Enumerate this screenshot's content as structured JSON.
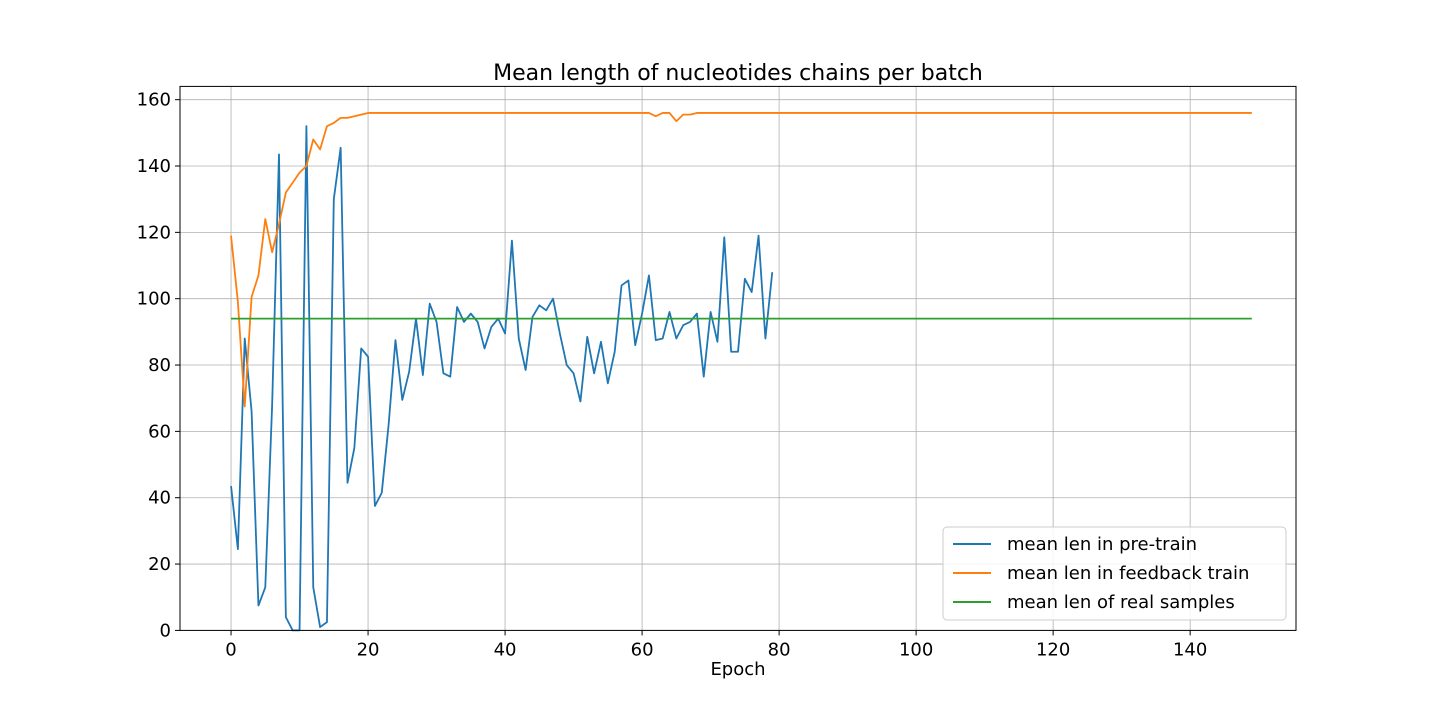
{
  "chart_data": {
    "type": "line",
    "title": "Mean length of nucleotides chains per batch",
    "xlabel": "Epoch",
    "ylabel": "",
    "xlim": [
      -7.45,
      155.45
    ],
    "ylim": [
      0,
      164
    ],
    "xticks": [
      0,
      20,
      40,
      60,
      80,
      100,
      120,
      140
    ],
    "yticks": [
      0,
      20,
      40,
      60,
      80,
      100,
      120,
      140,
      160
    ],
    "grid": true,
    "legend_position": "lower-right",
    "series": [
      {
        "name": "mean len in pre-train",
        "color": "#1f77b4",
        "x": [
          0,
          1,
          2,
          3,
          4,
          5,
          6,
          7,
          8,
          9,
          10,
          11,
          12,
          13,
          14,
          15,
          16,
          17,
          18,
          19,
          20,
          21,
          22,
          23,
          24,
          25,
          26,
          27,
          28,
          29,
          30,
          31,
          32,
          33,
          34,
          35,
          36,
          37,
          38,
          39,
          40,
          41,
          42,
          43,
          44,
          45,
          46,
          47,
          48,
          49,
          50,
          51,
          52,
          53,
          54,
          55,
          56,
          57,
          58,
          59,
          60,
          61,
          62,
          63,
          64,
          65,
          66,
          67,
          68,
          69,
          70,
          71,
          72,
          73,
          74,
          75,
          76,
          77,
          78,
          79
        ],
        "values": [
          43.5,
          24.5,
          88,
          66,
          7.5,
          13,
          68,
          143.5,
          4,
          0,
          0,
          152,
          13,
          1,
          2.5,
          130,
          145.5,
          44.5,
          55,
          85,
          82.5,
          37.5,
          41.5,
          62,
          87.5,
          69.5,
          78,
          94,
          77,
          98.5,
          93,
          77.5,
          76.5,
          97.5,
          93,
          95.5,
          93,
          85,
          91.5,
          94,
          89.5,
          117.5,
          88,
          78.5,
          94.5,
          98,
          96.5,
          100,
          89.5,
          80,
          77.5,
          69,
          88.5,
          77.5,
          87,
          74.5,
          84,
          104,
          105.5,
          86,
          95.5,
          107,
          87.5,
          88,
          96,
          88,
          92,
          93,
          95.5,
          76.5,
          96,
          87,
          118.5,
          84,
          84,
          106,
          102,
          119,
          88,
          108
        ]
      },
      {
        "name": "mean len in feedback train",
        "color": "#ff7f0e",
        "x": [
          0,
          1,
          2,
          3,
          4,
          5,
          6,
          7,
          8,
          9,
          10,
          11,
          12,
          13,
          14,
          15,
          16,
          17,
          18,
          19,
          20,
          21,
          22,
          25,
          30,
          40,
          50,
          60,
          61,
          62,
          63,
          64,
          65,
          66,
          67,
          68,
          69,
          70,
          80,
          100,
          120,
          140,
          149
        ],
        "values": [
          119,
          99,
          67.5,
          100.5,
          107,
          124,
          114,
          122.5,
          132,
          135,
          138,
          140,
          148,
          145,
          152,
          153,
          154.5,
          154.5,
          155,
          155.5,
          156,
          156,
          156,
          156,
          156,
          156,
          156,
          156,
          156,
          155,
          156,
          156,
          153.5,
          155.5,
          155.5,
          156,
          156,
          156,
          156,
          156,
          156,
          156,
          156
        ]
      },
      {
        "name": "mean len of real samples",
        "color": "#2ca02c",
        "x": [
          0,
          149
        ],
        "values": [
          94,
          94
        ]
      }
    ]
  }
}
